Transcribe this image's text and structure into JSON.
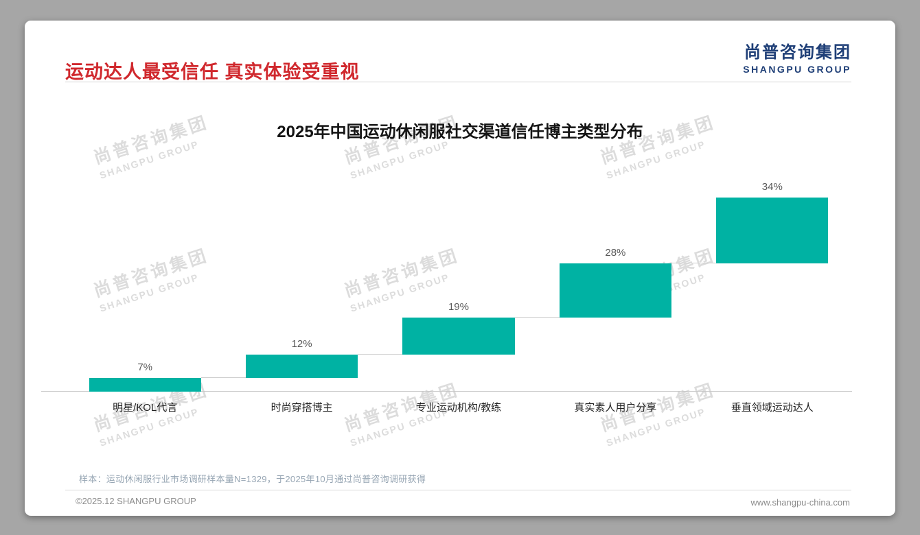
{
  "page": {
    "background": "#a6a6a6",
    "card_background": "#ffffff"
  },
  "header": {
    "title": "运动达人最受信任 真实体验受重视",
    "title_color": "#d0282d"
  },
  "logo": {
    "cn": "尚普咨询集团",
    "en": "SHANGPU GROUP",
    "color": "#1f3f77"
  },
  "chart_data": {
    "type": "bar",
    "subtype": "waterfall-steps",
    "title": "2025年中国运动休闲服社交渠道信任博主类型分布",
    "categories": [
      "明星/KOL代言",
      "时尚穿搭博主",
      "专业运动机构/教练",
      "真实素人用户分享",
      "垂直领域运动达人"
    ],
    "values": [
      7,
      12,
      19,
      28,
      34
    ],
    "labels": [
      "7%",
      "12%",
      "19%",
      "28%",
      "34%"
    ],
    "cumulative": [
      7,
      19,
      38,
      66,
      100
    ],
    "bar_color": "#00b2a3",
    "xlabel": "",
    "ylabel": "",
    "ylim": [
      0,
      100
    ],
    "grid": false,
    "legend": "none"
  },
  "watermark": {
    "cn": "尚普咨询集团",
    "en": "SHANGPU GROUP"
  },
  "footnote": {
    "sample": "样本：运动休闲服行业市场调研样本量N=1329，于2025年10月通过尚普咨询调研获得"
  },
  "footer": {
    "left": "©2025.12 SHANGPU GROUP",
    "right": "www.shangpu-china.com"
  }
}
